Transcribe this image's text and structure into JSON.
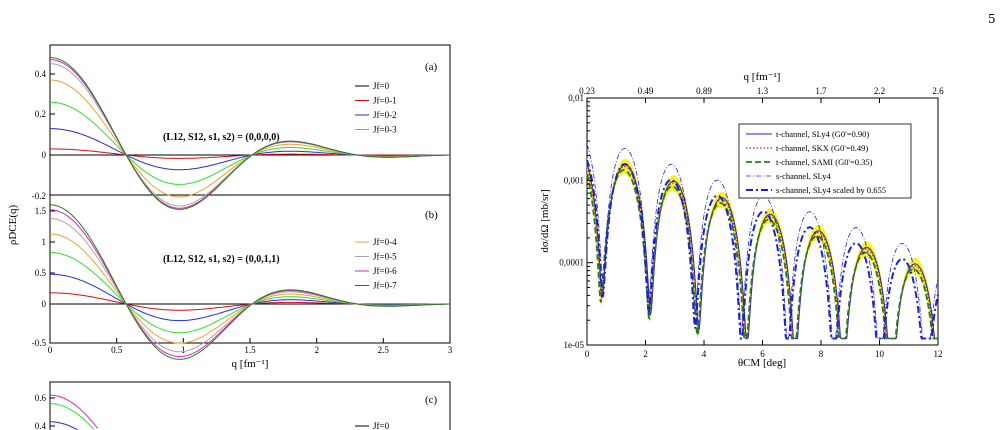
{
  "page_number": "5",
  "left_figure": {
    "y_axis_label": "ρDCE(q)",
    "x_axis_label": "q [fm⁻¹]",
    "panels": [
      {
        "tag": "(a)",
        "annotation": "(L12, S12, s1, s2) = (0,0,0,0)",
        "y_ticks": [
          "0.4",
          "0.2",
          "0",
          "-0.2"
        ],
        "legend": [
          {
            "label": "Jf=0",
            "color": "#000000"
          },
          {
            "label": "Jf=0-1",
            "color": "#d01010"
          },
          {
            "label": "Jf=0-2",
            "color": "#2a2ad8"
          },
          {
            "label": "Jf=0-3",
            "color": "#30e030"
          }
        ]
      },
      {
        "tag": "(b)",
        "annotation": "(L12, S12, s1, s2) = (0,0,1,1)",
        "y_ticks": [
          "1.5",
          "1",
          "0.5",
          "0",
          "-0.5"
        ],
        "x_ticks": [
          "0",
          "0.5",
          "1",
          "1.5",
          "2",
          "2.5",
          "3"
        ],
        "legend": [
          {
            "label": "Jf=0-4",
            "color": "#f0a030"
          },
          {
            "label": "Jf=0-5",
            "color": "#b0a0a0"
          },
          {
            "label": "Jf=0-6",
            "color": "#e020c0"
          },
          {
            "label": "Jf=0-7",
            "color": "#208020"
          }
        ]
      },
      {
        "tag": "(c)",
        "y_ticks": [
          "0.6",
          "0.4"
        ],
        "legend": [
          {
            "label": "Jf=0",
            "color": "#000000"
          }
        ]
      }
    ]
  },
  "right_figure": {
    "chart_data": {
      "type": "line",
      "xlabel": "θCM [deg]",
      "ylabel": "dσ/dΩ [mb/sr]",
      "top_xlabel": "q [fm⁻¹]",
      "x_ticks": [
        "0",
        "2",
        "4",
        "6",
        "8",
        "10",
        "12"
      ],
      "top_ticks": [
        "0.23",
        "0.49",
        "0.89",
        "1.3",
        "1.7",
        "2.2",
        "2.6"
      ],
      "y_ticks": [
        "0,01",
        "0,001",
        "0,0001",
        "1e-05"
      ],
      "xlim": [
        0,
        12
      ],
      "ylim": [
        1e-05,
        0.01
      ],
      "y_scale": "log",
      "legend": [
        {
          "label": "t-channel, SLy4 (G0'=0.90)",
          "color": "#2020d0",
          "style": "solid"
        },
        {
          "label": "t-channel, SKX (G0'=0.49)",
          "color": "#d02020",
          "style": "dotted"
        },
        {
          "label": "t-channel, SAMI (G0'=0.35)",
          "color": "#208020",
          "style": "dashed"
        },
        {
          "label": "s-channel, SLy4",
          "color": "#2020d0",
          "style": "dashdot"
        },
        {
          "label": "s-channel, SLy4 scaled by 0.655",
          "color": "#2020d0",
          "style": "dashdotbold"
        }
      ]
    }
  }
}
